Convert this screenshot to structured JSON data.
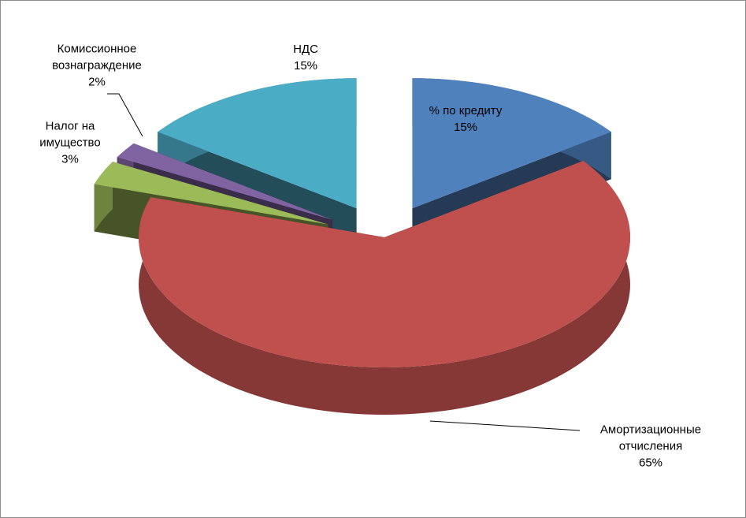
{
  "chart_data": {
    "type": "pie",
    "view": "3d-exploded",
    "categories": [
      "% по кредиту",
      "Амортизационные отчисления",
      "Налог на имущество",
      "Комиссионное вознаграждение",
      "НДС"
    ],
    "values": [
      15,
      65,
      3,
      2,
      15
    ],
    "value_labels": [
      "15%",
      "65%",
      "3%",
      "2%",
      "15%"
    ],
    "colors": [
      "#4f81bd",
      "#c0504d",
      "#9bbb59",
      "#8064a2",
      "#4bacc6"
    ]
  }
}
